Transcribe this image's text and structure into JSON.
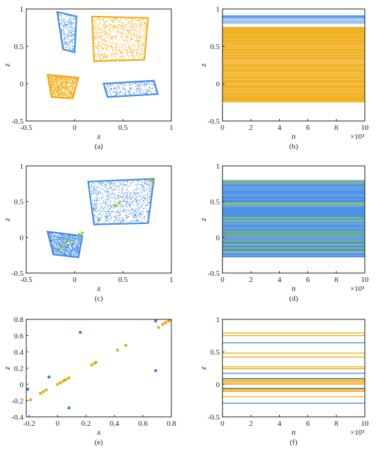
{
  "colors": {
    "blue": "#2f7fe0",
    "orange": "#f0a500",
    "green": "#9acd32",
    "yellow": "#d8c000"
  },
  "chart_data": [
    {
      "id": "a",
      "type": "scatter",
      "label": "(a)",
      "xlabel": "x",
      "ylabel": "z",
      "xlim": [
        -0.5,
        1
      ],
      "ylim": [
        -0.5,
        1
      ],
      "xticks": [
        -0.5,
        0,
        0.5,
        1
      ],
      "xtick_labels": [
        "-0.5",
        "0",
        "0.5",
        "1"
      ],
      "yticks": [
        -0.5,
        0,
        0.5,
        1
      ],
      "ytick_labels": [
        "-0.5",
        "0",
        "0.5",
        "1"
      ],
      "series": [
        {
          "color": "orange",
          "regions": [
            {
              "poly": [
                [
                  0.18,
                  0.9
                ],
                [
                  0.76,
                  0.88
                ],
                [
                  0.72,
                  0.32
                ],
                [
                  0.2,
                  0.3
                ]
              ]
            },
            {
              "poly": [
                [
                  -0.28,
                  0.12
                ],
                [
                  0.04,
                  0.08
                ],
                [
                  -0.02,
                  -0.2
                ],
                [
                  -0.24,
                  -0.18
                ]
              ]
            }
          ]
        },
        {
          "color": "blue",
          "regions": [
            {
              "poly": [
                [
                  -0.18,
                  0.96
                ],
                [
                  0.02,
                  0.9
                ],
                [
                  0.0,
                  0.42
                ],
                [
                  -0.12,
                  0.46
                ]
              ],
              "sparse": true
            },
            {
              "poly": [
                [
                  0.3,
                  0.0
                ],
                [
                  0.82,
                  0.04
                ],
                [
                  0.86,
                  -0.14
                ],
                [
                  0.34,
                  -0.18
                ]
              ],
              "sparse": true
            }
          ]
        }
      ]
    },
    {
      "id": "b",
      "type": "scatter",
      "label": "(b)",
      "xlabel": "n",
      "ylabel": "z",
      "xmultiplier": "×10⁵",
      "xlim": [
        0,
        10
      ],
      "ylim": [
        -0.5,
        1
      ],
      "xticks": [
        0,
        2,
        4,
        6,
        8,
        10
      ],
      "xtick_labels": [
        "0",
        "2",
        "4",
        "6",
        "8",
        "10"
      ],
      "yticks": [
        -0.5,
        0,
        0.5,
        1
      ],
      "ytick_labels": [
        "-0.5",
        "0",
        "0.5",
        "1"
      ],
      "bands": [
        {
          "color": "blue",
          "z": [
            0.8,
            0.92
          ]
        },
        {
          "color": "orange",
          "z": [
            -0.25,
            0.76
          ]
        }
      ]
    },
    {
      "id": "c",
      "type": "scatter",
      "label": "(c)",
      "xlabel": "x",
      "ylabel": "z",
      "xlim": [
        -0.5,
        1
      ],
      "ylim": [
        -0.5,
        1
      ],
      "xticks": [
        -0.5,
        0,
        0.5,
        1
      ],
      "xtick_labels": [
        "-0.5",
        "0",
        "0.5",
        "1"
      ],
      "yticks": [
        -0.5,
        0,
        0.5,
        1
      ],
      "ytick_labels": [
        "-0.5",
        "0",
        "0.5",
        "1"
      ],
      "series": [
        {
          "color": "blue",
          "regions": [
            {
              "poly": [
                [
                  0.14,
                  0.78
                ],
                [
                  0.82,
                  0.82
                ],
                [
                  0.76,
                  0.2
                ],
                [
                  0.2,
                  0.18
                ]
              ]
            },
            {
              "poly": [
                [
                  -0.28,
                  0.08
                ],
                [
                  0.08,
                  0.02
                ],
                [
                  0.04,
                  -0.28
                ],
                [
                  -0.22,
                  -0.24
                ]
              ]
            }
          ]
        },
        {
          "color": "green",
          "points": [
            [
              0.78,
              0.8
            ],
            [
              0.8,
              0.78
            ],
            [
              0.42,
              0.44
            ],
            [
              0.46,
              0.48
            ],
            [
              0.25,
              0.25
            ],
            [
              0.05,
              0.04
            ],
            [
              0.08,
              0.06
            ],
            [
              -0.1,
              -0.1
            ],
            [
              -0.05,
              -0.06
            ],
            [
              -0.15,
              -0.15
            ]
          ]
        }
      ]
    },
    {
      "id": "d",
      "type": "scatter",
      "label": "(d)",
      "xlabel": "n",
      "ylabel": "z",
      "xmultiplier": "×10⁵",
      "xlim": [
        0,
        10
      ],
      "ylim": [
        -0.5,
        1
      ],
      "xticks": [
        0,
        2,
        4,
        6,
        8,
        10
      ],
      "xtick_labels": [
        "0",
        "2",
        "4",
        "6",
        "8",
        "10"
      ],
      "yticks": [
        -0.5,
        0,
        0.5,
        1
      ],
      "ytick_labels": [
        "-0.5",
        "0",
        "0.5",
        "1"
      ],
      "bands": [
        {
          "color": "blue",
          "z": [
            -0.28,
            0.8
          ]
        }
      ],
      "lines": {
        "color": "green",
        "z": [
          0.78,
          0.75,
          0.48,
          0.45,
          0.27,
          0.24,
          0.08,
          0.05,
          0.02,
          -0.05,
          -0.1,
          -0.15,
          -0.2
        ]
      }
    },
    {
      "id": "e",
      "type": "scatter",
      "label": "(e)",
      "xlabel": "x",
      "ylabel": "z",
      "xlim": [
        -0.22,
        0.8
      ],
      "ylim": [
        -0.4,
        0.8
      ],
      "xticks": [
        -0.2,
        0,
        0.2,
        0.4,
        0.6,
        0.8
      ],
      "xtick_labels": [
        "-0.2",
        "0",
        "0.2",
        "0.4",
        "0.6",
        "0.8"
      ],
      "yticks": [
        -0.4,
        -0.2,
        0,
        0.2,
        0.4,
        0.6,
        0.8
      ],
      "ytick_labels": [
        "-0.4",
        "-0.2",
        "0",
        "0.2",
        "0.4",
        "0.6",
        "0.8"
      ],
      "series": [
        {
          "color": "blue",
          "points": [
            [
              -0.21,
              -0.06
            ],
            [
              -0.06,
              0.09
            ],
            [
              0.08,
              -0.29
            ],
            [
              0.16,
              0.64
            ],
            [
              0.69,
              0.78
            ],
            [
              0.69,
              0.17
            ]
          ]
        },
        {
          "color": "orange",
          "points": [
            [
              -0.19,
              -0.19
            ],
            [
              -0.12,
              -0.11
            ],
            [
              -0.1,
              -0.09
            ],
            [
              0.0,
              0.0
            ],
            [
              0.02,
              0.02
            ],
            [
              0.04,
              0.04
            ],
            [
              0.06,
              0.06
            ],
            [
              0.08,
              0.08
            ],
            [
              0.24,
              0.24
            ],
            [
              0.27,
              0.27
            ],
            [
              0.48,
              0.48
            ],
            [
              0.74,
              0.74
            ],
            [
              0.76,
              0.76
            ],
            [
              0.78,
              0.78
            ],
            [
              0.79,
              0.79
            ]
          ]
        },
        {
          "color": "green",
          "points": [
            [
              0.26,
              0.26
            ],
            [
              0.42,
              0.42
            ],
            [
              0.71,
              0.7
            ],
            [
              -0.08,
              -0.07
            ],
            [
              0.05,
              0.05
            ]
          ]
        }
      ]
    },
    {
      "id": "f",
      "type": "line",
      "label": "(f)",
      "xlabel": "n",
      "ylabel": "z",
      "xmultiplier": "×10⁵",
      "xlim": [
        0,
        10
      ],
      "ylim": [
        -0.5,
        1
      ],
      "xticks": [
        0,
        2,
        4,
        6,
        8,
        10
      ],
      "xtick_labels": [
        "0",
        "2",
        "4",
        "6",
        "8",
        "10"
      ],
      "yticks": [
        -0.5,
        0,
        0.5,
        1
      ],
      "ytick_labels": [
        "-0.5",
        "0",
        "0.5",
        "1"
      ],
      "series": [
        {
          "color": "orange",
          "z": [
            0.79,
            0.75,
            0.48,
            0.42,
            0.27,
            0.24,
            0.08,
            0.06,
            0.04,
            0.02,
            0.0,
            -0.07,
            -0.09,
            -0.11,
            -0.19
          ]
        },
        {
          "color": "blue",
          "z": [
            0.64,
            0.17,
            0.09,
            -0.06,
            -0.29
          ]
        }
      ]
    }
  ]
}
